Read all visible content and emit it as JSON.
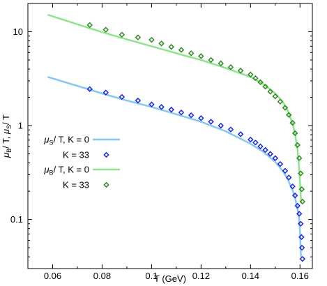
{
  "chart_data": {
    "type": "line",
    "title": "",
    "xlabel": "T (GeV)",
    "ylabel": "μB/ T, μS/ T",
    "ylabel_parts": {
      "a": "μ",
      "a_sub": "B",
      "b": "/ T, ",
      "c": "μ",
      "c_sub": "S",
      "d": "/ T"
    },
    "xlim": [
      0.05,
      0.165
    ],
    "ylim": [
      0.03,
      20
    ],
    "yscale": "log",
    "grid": false,
    "legend_position": "left-center",
    "x_ticks": [
      0.06,
      0.08,
      0.1,
      0.12,
      0.14,
      0.16
    ],
    "x_tick_labels": [
      "0.06",
      "0.08",
      "0.1",
      "0.12",
      "0.14",
      "0.16"
    ],
    "y_ticks": [
      0.1,
      1,
      10
    ],
    "y_tick_labels": [
      "0.1",
      "1",
      "10"
    ],
    "legend": [
      {
        "label_main": "/ T, K = 0",
        "label_mu": "μ",
        "label_sub": "S",
        "kind": "line",
        "series": 0
      },
      {
        "label": "K = 33",
        "kind": "marker",
        "series": 1
      },
      {
        "label_main": "/ T, K = 0",
        "label_mu": "μ",
        "label_sub": "B",
        "kind": "line",
        "series": 2
      },
      {
        "label": "K = 33",
        "kind": "marker",
        "series": 3
      }
    ],
    "series": [
      {
        "name": "μS/ T, K = 0",
        "kind": "line",
        "color": "#87c8ee",
        "x": [
          0.058,
          0.07,
          0.08,
          0.09,
          0.1,
          0.11,
          0.12,
          0.13,
          0.14,
          0.145,
          0.15,
          0.153,
          0.155,
          0.157,
          0.158,
          0.159,
          0.1595,
          0.16,
          0.1602,
          0.1604
        ],
        "y": [
          3.3,
          2.65,
          2.2,
          1.85,
          1.58,
          1.32,
          1.1,
          0.87,
          0.64,
          0.53,
          0.41,
          0.33,
          0.27,
          0.205,
          0.17,
          0.13,
          0.11,
          0.075,
          0.055,
          0.04
        ]
      },
      {
        "name": "μS/ T, K = 33",
        "kind": "marker",
        "color": "#1a28e6",
        "x": [
          0.075,
          0.0815,
          0.088,
          0.0945,
          0.1,
          0.104,
          0.108,
          0.112,
          0.116,
          0.12,
          0.124,
          0.128,
          0.132,
          0.136,
          0.14,
          0.142,
          0.144,
          0.146,
          0.148,
          0.15,
          0.152,
          0.154,
          0.1555,
          0.157,
          0.158,
          0.159,
          0.1597,
          0.1603,
          0.1606,
          0.1608,
          0.161
        ],
        "y": [
          2.45,
          2.25,
          2.02,
          1.85,
          1.68,
          1.58,
          1.48,
          1.38,
          1.29,
          1.2,
          1.1,
          1.0,
          0.91,
          0.81,
          0.71,
          0.66,
          0.6,
          0.55,
          0.5,
          0.45,
          0.39,
          0.33,
          0.28,
          0.225,
          0.18,
          0.14,
          0.115,
          0.09,
          0.065,
          0.05,
          0.038
        ]
      },
      {
        "name": "μB/ T, K = 0",
        "kind": "line",
        "color": "#8ee48a",
        "x": [
          0.058,
          0.07,
          0.08,
          0.09,
          0.1,
          0.11,
          0.12,
          0.13,
          0.14,
          0.145,
          0.15,
          0.153,
          0.155,
          0.157,
          0.158,
          0.159,
          0.1595,
          0.16,
          0.1603,
          0.1606
        ],
        "y": [
          15.2,
          12.0,
          9.9,
          8.3,
          7.0,
          5.9,
          5.0,
          4.1,
          3.3,
          2.8,
          2.2,
          1.8,
          1.45,
          1.05,
          0.82,
          0.55,
          0.4,
          0.25,
          0.18,
          0.15
        ]
      },
      {
        "name": "μB/ T, K = 33",
        "kind": "marker",
        "color": "#2e8b22",
        "x": [
          0.075,
          0.0815,
          0.088,
          0.0945,
          0.1,
          0.104,
          0.108,
          0.112,
          0.116,
          0.12,
          0.124,
          0.128,
          0.132,
          0.136,
          0.14,
          0.142,
          0.144,
          0.146,
          0.148,
          0.15,
          0.152,
          0.154,
          0.1555,
          0.157,
          0.158,
          0.159,
          0.1597,
          0.1603,
          0.1607,
          0.161
        ],
        "y": [
          11.8,
          10.5,
          9.3,
          8.7,
          8.2,
          7.5,
          6.9,
          6.4,
          5.9,
          5.5,
          5.0,
          4.6,
          4.2,
          3.85,
          3.5,
          3.2,
          2.9,
          2.6,
          2.3,
          2.05,
          1.8,
          1.55,
          1.3,
          1.07,
          0.83,
          0.62,
          0.45,
          0.31,
          0.21,
          0.155
        ]
      }
    ]
  }
}
